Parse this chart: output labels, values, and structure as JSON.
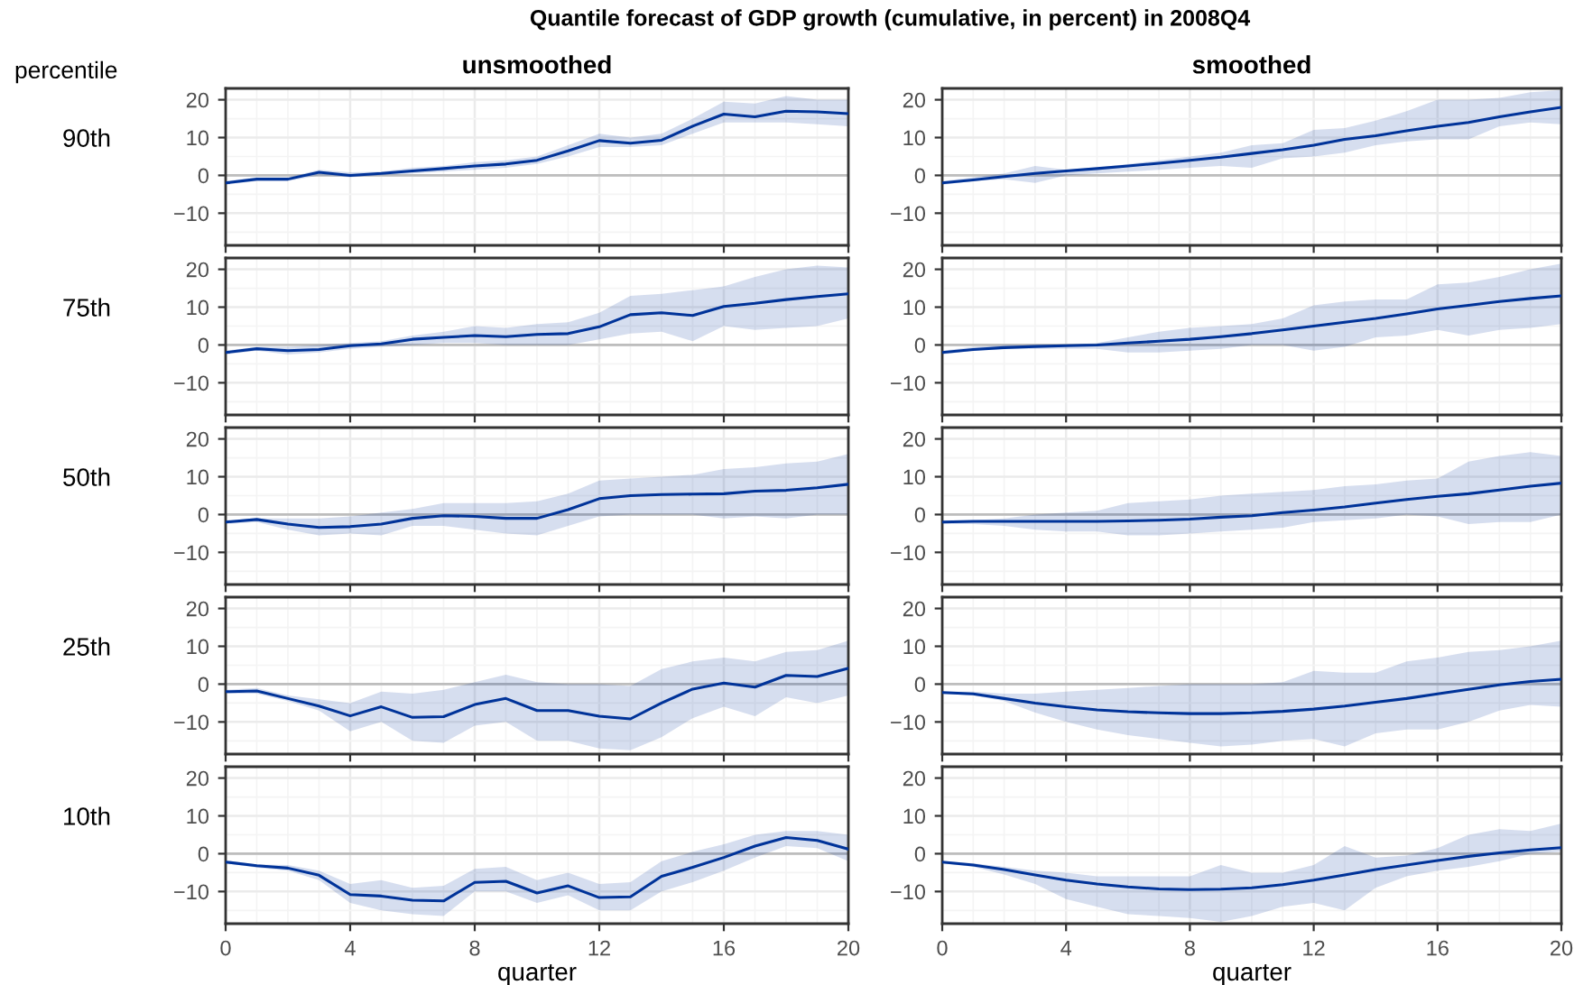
{
  "chart_data": [
    {
      "type": "line",
      "title": "Quantile forecast of GDP growth (cumulative, in percent) in 2008Q4",
      "subtitle": "unsmoothed",
      "ylabel": "90th",
      "annotations": [
        "percentile"
      ],
      "tick_labels": "y",
      "grid": true,
      "xlim": [
        0,
        20
      ],
      "ylim": [
        -18.5,
        23
      ],
      "xticks": [
        0,
        {
          "value": 1,
          "label": null
        },
        {
          "value": 2,
          "label": null
        },
        {
          "value": 3,
          "label": null
        },
        4,
        {
          "value": 5,
          "label": null
        },
        {
          "value": 6,
          "label": null
        },
        {
          "value": 7,
          "label": null
        },
        8,
        {
          "value": 9,
          "label": null
        },
        {
          "value": 10,
          "label": null
        },
        {
          "value": 11,
          "label": null
        },
        12,
        {
          "value": 13,
          "label": null
        },
        {
          "value": 14,
          "label": null
        },
        {
          "value": 15,
          "label": null
        },
        16,
        {
          "value": 17,
          "label": null
        },
        {
          "value": 18,
          "label": null
        },
        {
          "value": 19,
          "label": null
        },
        20
      ],
      "yticks": [
        {
          "value": -15,
          "label": null
        },
        {
          "value": -10,
          "label": "−10"
        },
        {
          "value": -5,
          "label": null
        },
        0,
        {
          "value": 5,
          "label": null
        },
        10,
        {
          "value": 15,
          "label": null
        },
        20
      ],
      "ref_lines": [
        {
          "axis": "y",
          "value": 0,
          "color": "#bdbdbd"
        }
      ],
      "x": [
        0,
        1,
        2,
        3,
        4,
        5,
        6,
        7,
        8,
        9,
        10,
        11,
        12,
        13,
        14,
        15,
        16,
        17,
        18,
        19,
        20
      ],
      "series": [
        {
          "color": "#003399",
          "values": [
            -2,
            -1,
            -1,
            0.8,
            0,
            0.5,
            1.2,
            1.8,
            2.5,
            3,
            4,
            6.5,
            9.2,
            8.5,
            9.3,
            13,
            16.2,
            15.5,
            17,
            16.8,
            16.3
          ],
          "lower": [
            -2.5,
            -1.5,
            -1.5,
            0,
            -0.5,
            0,
            0.5,
            1,
            1.5,
            2,
            3,
            5,
            7.5,
            7.5,
            8,
            11,
            14,
            14,
            14,
            13.5,
            13
          ],
          "upper": [
            -1.5,
            -0.5,
            -0.5,
            1.5,
            0.8,
            1,
            2,
            2.5,
            3.5,
            4,
            5,
            8,
            11,
            10,
            11,
            15,
            19.5,
            19,
            21,
            20,
            20
          ]
        }
      ]
    },
    {
      "type": "line",
      "subtitle": "smoothed",
      "tick_labels": "y",
      "grid": true,
      "xlim": [
        0,
        20
      ],
      "ylim": [
        -18.5,
        23
      ],
      "xticks": [
        0,
        {
          "value": 1,
          "label": null
        },
        {
          "value": 2,
          "label": null
        },
        {
          "value": 3,
          "label": null
        },
        4,
        {
          "value": 5,
          "label": null
        },
        {
          "value": 6,
          "label": null
        },
        {
          "value": 7,
          "label": null
        },
        8,
        {
          "value": 9,
          "label": null
        },
        {
          "value": 10,
          "label": null
        },
        {
          "value": 11,
          "label": null
        },
        12,
        {
          "value": 13,
          "label": null
        },
        {
          "value": 14,
          "label": null
        },
        {
          "value": 15,
          "label": null
        },
        16,
        {
          "value": 17,
          "label": null
        },
        {
          "value": 18,
          "label": null
        },
        {
          "value": 19,
          "label": null
        },
        20
      ],
      "yticks": [
        {
          "value": -15,
          "label": null
        },
        {
          "value": -10,
          "label": "−10"
        },
        {
          "value": -5,
          "label": null
        },
        0,
        {
          "value": 5,
          "label": null
        },
        10,
        {
          "value": 15,
          "label": null
        },
        20
      ],
      "ref_lines": [
        {
          "axis": "y",
          "value": 0,
          "color": "#bdbdbd"
        }
      ],
      "x": [
        0,
        1,
        2,
        3,
        4,
        5,
        6,
        7,
        8,
        9,
        10,
        11,
        12,
        13,
        14,
        15,
        16,
        17,
        18,
        19,
        20
      ],
      "series": [
        {
          "color": "#003399",
          "values": [
            -2,
            -1.2,
            -0.3,
            0.5,
            1.2,
            1.8,
            2.5,
            3.2,
            4,
            4.8,
            5.8,
            6.8,
            8,
            9.5,
            10.5,
            11.8,
            13,
            14,
            15.5,
            16.8,
            18
          ],
          "lower": [
            -2.5,
            -1.5,
            -1,
            -2,
            0,
            0.5,
            1,
            1.5,
            2,
            2.5,
            2,
            4.5,
            5,
            6,
            8,
            9,
            9.5,
            9.5,
            13,
            14,
            13.5
          ],
          "upper": [
            -1.5,
            -0.5,
            0.5,
            2.5,
            1.5,
            2,
            3,
            4,
            5,
            6,
            8,
            8.5,
            12,
            12.5,
            14.5,
            17,
            20,
            20,
            20.5,
            22,
            22.5
          ]
        }
      ]
    },
    {
      "type": "line",
      "ylabel": "75th",
      "tick_labels": "y",
      "grid": true,
      "xlim": [
        0,
        20
      ],
      "ylim": [
        -18.5,
        23
      ],
      "xticks": [
        0,
        {
          "value": 1,
          "label": null
        },
        {
          "value": 2,
          "label": null
        },
        {
          "value": 3,
          "label": null
        },
        4,
        {
          "value": 5,
          "label": null
        },
        {
          "value": 6,
          "label": null
        },
        {
          "value": 7,
          "label": null
        },
        8,
        {
          "value": 9,
          "label": null
        },
        {
          "value": 10,
          "label": null
        },
        {
          "value": 11,
          "label": null
        },
        12,
        {
          "value": 13,
          "label": null
        },
        {
          "value": 14,
          "label": null
        },
        {
          "value": 15,
          "label": null
        },
        16,
        {
          "value": 17,
          "label": null
        },
        {
          "value": 18,
          "label": null
        },
        {
          "value": 19,
          "label": null
        },
        20
      ],
      "yticks": [
        {
          "value": -15,
          "label": null
        },
        {
          "value": -10,
          "label": "−10"
        },
        {
          "value": -5,
          "label": null
        },
        0,
        {
          "value": 5,
          "label": null
        },
        10,
        {
          "value": 15,
          "label": null
        },
        20
      ],
      "ref_lines": [
        {
          "axis": "y",
          "value": 0,
          "color": "#bdbdbd"
        }
      ],
      "x": [
        0,
        1,
        2,
        3,
        4,
        5,
        6,
        7,
        8,
        9,
        10,
        11,
        12,
        13,
        14,
        15,
        16,
        17,
        18,
        19,
        20
      ],
      "series": [
        {
          "color": "#003399",
          "values": [
            -2,
            -1,
            -1.5,
            -1.2,
            -0.2,
            0.3,
            1.5,
            2,
            2.5,
            2.2,
            2.8,
            3,
            4.8,
            8,
            8.5,
            7.8,
            10.2,
            11,
            12,
            12.8,
            13.5
          ],
          "lower": [
            -2.5,
            -1.5,
            -2.5,
            -2,
            -1,
            -0.5,
            0,
            0.5,
            0.5,
            0,
            0,
            0,
            1.5,
            3,
            3.5,
            1,
            5,
            4,
            4.5,
            5,
            7
          ],
          "upper": [
            -1.5,
            -0.5,
            -0.5,
            0,
            0.5,
            1,
            2.5,
            3.5,
            5,
            4.5,
            5.5,
            6,
            8.5,
            13,
            13.5,
            14.5,
            15.5,
            18,
            20,
            21,
            20.5
          ]
        }
      ]
    },
    {
      "type": "line",
      "tick_labels": "y",
      "grid": true,
      "xlim": [
        0,
        20
      ],
      "ylim": [
        -18.5,
        23
      ],
      "xticks": [
        0,
        {
          "value": 1,
          "label": null
        },
        {
          "value": 2,
          "label": null
        },
        {
          "value": 3,
          "label": null
        },
        4,
        {
          "value": 5,
          "label": null
        },
        {
          "value": 6,
          "label": null
        },
        {
          "value": 7,
          "label": null
        },
        8,
        {
          "value": 9,
          "label": null
        },
        {
          "value": 10,
          "label": null
        },
        {
          "value": 11,
          "label": null
        },
        12,
        {
          "value": 13,
          "label": null
        },
        {
          "value": 14,
          "label": null
        },
        {
          "value": 15,
          "label": null
        },
        16,
        {
          "value": 17,
          "label": null
        },
        {
          "value": 18,
          "label": null
        },
        {
          "value": 19,
          "label": null
        },
        20
      ],
      "yticks": [
        {
          "value": -15,
          "label": null
        },
        {
          "value": -10,
          "label": "−10"
        },
        {
          "value": -5,
          "label": null
        },
        0,
        {
          "value": 5,
          "label": null
        },
        10,
        {
          "value": 15,
          "label": null
        },
        20
      ],
      "ref_lines": [
        {
          "axis": "y",
          "value": 0,
          "color": "#bdbdbd"
        }
      ],
      "x": [
        0,
        1,
        2,
        3,
        4,
        5,
        6,
        7,
        8,
        9,
        10,
        11,
        12,
        13,
        14,
        15,
        16,
        17,
        18,
        19,
        20
      ],
      "series": [
        {
          "color": "#003399",
          "values": [
            -2,
            -1.2,
            -0.7,
            -0.4,
            -0.2,
            0,
            0.5,
            1,
            1.5,
            2.2,
            3,
            4,
            5,
            6,
            7,
            8.2,
            9.5,
            10.5,
            11.5,
            12.3,
            13
          ],
          "lower": [
            -2.5,
            -1.5,
            -1,
            -1,
            -1,
            -1,
            -2,
            -2,
            -1.5,
            -1,
            0,
            0,
            -1.5,
            -0.5,
            2,
            2.5,
            4,
            2.5,
            4,
            4.5,
            5.5
          ],
          "upper": [
            -1.5,
            -0.5,
            0,
            0,
            0,
            0.5,
            2,
            3.5,
            4.5,
            5,
            5.5,
            7,
            10.5,
            11.5,
            12,
            12,
            16,
            16.5,
            18,
            20,
            21.5
          ]
        }
      ]
    },
    {
      "type": "line",
      "ylabel": "50th",
      "tick_labels": "y",
      "grid": true,
      "xlim": [
        0,
        20
      ],
      "ylim": [
        -18.5,
        23
      ],
      "xticks": [
        0,
        {
          "value": 1,
          "label": null
        },
        {
          "value": 2,
          "label": null
        },
        {
          "value": 3,
          "label": null
        },
        4,
        {
          "value": 5,
          "label": null
        },
        {
          "value": 6,
          "label": null
        },
        {
          "value": 7,
          "label": null
        },
        8,
        {
          "value": 9,
          "label": null
        },
        {
          "value": 10,
          "label": null
        },
        {
          "value": 11,
          "label": null
        },
        12,
        {
          "value": 13,
          "label": null
        },
        {
          "value": 14,
          "label": null
        },
        {
          "value": 15,
          "label": null
        },
        16,
        {
          "value": 17,
          "label": null
        },
        {
          "value": 18,
          "label": null
        },
        {
          "value": 19,
          "label": null
        },
        20
      ],
      "yticks": [
        {
          "value": -15,
          "label": null
        },
        {
          "value": -10,
          "label": "−10"
        },
        {
          "value": -5,
          "label": null
        },
        0,
        {
          "value": 5,
          "label": null
        },
        10,
        {
          "value": 15,
          "label": null
        },
        20
      ],
      "ref_lines": [
        {
          "axis": "y",
          "value": 0,
          "color": "#bdbdbd"
        }
      ],
      "x": [
        0,
        1,
        2,
        3,
        4,
        5,
        6,
        7,
        8,
        9,
        10,
        11,
        12,
        13,
        14,
        15,
        16,
        17,
        18,
        19,
        20
      ],
      "series": [
        {
          "color": "#003399",
          "values": [
            -2,
            -1.3,
            -2.5,
            -3.4,
            -3.2,
            -2.5,
            -1,
            -0.3,
            -0.5,
            -1,
            -1,
            1.3,
            4.2,
            5,
            5.3,
            5.4,
            5.5,
            6.2,
            6.4,
            7.1,
            8
          ],
          "lower": [
            -2.5,
            -2,
            -4,
            -5.5,
            -5,
            -5.5,
            -3,
            -3,
            -4,
            -5,
            -5.5,
            -3,
            -0.5,
            0,
            0,
            0,
            -1,
            -0.5,
            -1,
            0,
            0
          ],
          "upper": [
            -1.5,
            -1,
            -1,
            -1,
            -0.5,
            0.5,
            1.5,
            3,
            3,
            3,
            3.5,
            5.5,
            9,
            9.5,
            10,
            10.5,
            12,
            12.5,
            13.5,
            14,
            16
          ]
        }
      ]
    },
    {
      "type": "line",
      "tick_labels": "y",
      "grid": true,
      "xlim": [
        0,
        20
      ],
      "ylim": [
        -18.5,
        23
      ],
      "xticks": [
        0,
        {
          "value": 1,
          "label": null
        },
        {
          "value": 2,
          "label": null
        },
        {
          "value": 3,
          "label": null
        },
        4,
        {
          "value": 5,
          "label": null
        },
        {
          "value": 6,
          "label": null
        },
        {
          "value": 7,
          "label": null
        },
        8,
        {
          "value": 9,
          "label": null
        },
        {
          "value": 10,
          "label": null
        },
        {
          "value": 11,
          "label": null
        },
        12,
        {
          "value": 13,
          "label": null
        },
        {
          "value": 14,
          "label": null
        },
        {
          "value": 15,
          "label": null
        },
        16,
        {
          "value": 17,
          "label": null
        },
        {
          "value": 18,
          "label": null
        },
        {
          "value": 19,
          "label": null
        },
        20
      ],
      "yticks": [
        {
          "value": -15,
          "label": null
        },
        {
          "value": -10,
          "label": "−10"
        },
        {
          "value": -5,
          "label": null
        },
        0,
        {
          "value": 5,
          "label": null
        },
        10,
        {
          "value": 15,
          "label": null
        },
        20
      ],
      "ref_lines": [
        {
          "axis": "y",
          "value": 0,
          "color": "#bdbdbd"
        }
      ],
      "x": [
        0,
        1,
        2,
        3,
        4,
        5,
        6,
        7,
        8,
        9,
        10,
        11,
        12,
        13,
        14,
        15,
        16,
        17,
        18,
        19,
        20
      ],
      "series": [
        {
          "color": "#003399",
          "values": [
            -2,
            -1.8,
            -1.8,
            -1.8,
            -1.8,
            -1.8,
            -1.7,
            -1.5,
            -1.2,
            -0.7,
            -0.3,
            0.5,
            1.2,
            2,
            3,
            4,
            4.8,
            5.5,
            6.5,
            7.5,
            8.3
          ],
          "lower": [
            -2.5,
            -2.5,
            -3,
            -4,
            -4.5,
            -4.5,
            -5.5,
            -5.5,
            -5,
            -4.5,
            -4,
            -3.5,
            -2,
            -1.5,
            -1,
            0,
            -0.5,
            -2.5,
            -2,
            -2,
            0
          ],
          "upper": [
            -1.5,
            -1.5,
            -1,
            0,
            0.5,
            1,
            3,
            3.5,
            4,
            5,
            5.5,
            6,
            6.5,
            7.5,
            8,
            9,
            9.5,
            14,
            15.5,
            16.5,
            15.5
          ]
        }
      ]
    },
    {
      "type": "line",
      "ylabel": "25th",
      "tick_labels": "y",
      "grid": true,
      "xlim": [
        0,
        20
      ],
      "ylim": [
        -18.5,
        23
      ],
      "xticks": [
        0,
        {
          "value": 1,
          "label": null
        },
        {
          "value": 2,
          "label": null
        },
        {
          "value": 3,
          "label": null
        },
        4,
        {
          "value": 5,
          "label": null
        },
        {
          "value": 6,
          "label": null
        },
        {
          "value": 7,
          "label": null
        },
        8,
        {
          "value": 9,
          "label": null
        },
        {
          "value": 10,
          "label": null
        },
        {
          "value": 11,
          "label": null
        },
        12,
        {
          "value": 13,
          "label": null
        },
        {
          "value": 14,
          "label": null
        },
        {
          "value": 15,
          "label": null
        },
        16,
        {
          "value": 17,
          "label": null
        },
        {
          "value": 18,
          "label": null
        },
        {
          "value": 19,
          "label": null
        },
        20
      ],
      "yticks": [
        {
          "value": -15,
          "label": null
        },
        {
          "value": -10,
          "label": "−10"
        },
        {
          "value": -5,
          "label": null
        },
        0,
        {
          "value": 5,
          "label": null
        },
        10,
        {
          "value": 15,
          "label": null
        },
        20
      ],
      "ref_lines": [
        {
          "axis": "y",
          "value": 0,
          "color": "#bdbdbd"
        }
      ],
      "x": [
        0,
        1,
        2,
        3,
        4,
        5,
        6,
        7,
        8,
        9,
        10,
        11,
        12,
        13,
        14,
        15,
        16,
        17,
        18,
        19,
        20
      ],
      "series": [
        {
          "color": "#003399",
          "values": [
            -2,
            -1.8,
            -3.8,
            -5.8,
            -8.4,
            -6,
            -8.8,
            -8.6,
            -5.4,
            -3.8,
            -7,
            -7,
            -8.5,
            -9.2,
            -5,
            -1.3,
            0.3,
            -0.8,
            2.3,
            2,
            4.2
          ],
          "lower": [
            -2.5,
            -2.5,
            -4.5,
            -7,
            -12.5,
            -10,
            -15,
            -15.5,
            -11,
            -10,
            -15,
            -15,
            -17,
            -17.5,
            -14,
            -9,
            -6,
            -8.5,
            -3.5,
            -5,
            -3
          ],
          "upper": [
            -1.5,
            -1,
            -3,
            -4,
            -5,
            -2,
            -2.5,
            -1.5,
            0.5,
            2.5,
            0.5,
            0,
            0,
            -0.5,
            4,
            6,
            7,
            6,
            8.5,
            9,
            11.5
          ]
        }
      ]
    },
    {
      "type": "line",
      "tick_labels": "y",
      "grid": true,
      "xlim": [
        0,
        20
      ],
      "ylim": [
        -18.5,
        23
      ],
      "xticks": [
        0,
        {
          "value": 1,
          "label": null
        },
        {
          "value": 2,
          "label": null
        },
        {
          "value": 3,
          "label": null
        },
        4,
        {
          "value": 5,
          "label": null
        },
        {
          "value": 6,
          "label": null
        },
        {
          "value": 7,
          "label": null
        },
        8,
        {
          "value": 9,
          "label": null
        },
        {
          "value": 10,
          "label": null
        },
        {
          "value": 11,
          "label": null
        },
        12,
        {
          "value": 13,
          "label": null
        },
        {
          "value": 14,
          "label": null
        },
        {
          "value": 15,
          "label": null
        },
        16,
        {
          "value": 17,
          "label": null
        },
        {
          "value": 18,
          "label": null
        },
        {
          "value": 19,
          "label": null
        },
        20
      ],
      "yticks": [
        {
          "value": -15,
          "label": null
        },
        {
          "value": -10,
          "label": "−10"
        },
        {
          "value": -5,
          "label": null
        },
        0,
        {
          "value": 5,
          "label": null
        },
        10,
        {
          "value": 15,
          "label": null
        },
        20
      ],
      "ref_lines": [
        {
          "axis": "y",
          "value": 0,
          "color": "#bdbdbd"
        }
      ],
      "x": [
        0,
        1,
        2,
        3,
        4,
        5,
        6,
        7,
        8,
        9,
        10,
        11,
        12,
        13,
        14,
        15,
        16,
        17,
        18,
        19,
        20
      ],
      "series": [
        {
          "color": "#003399",
          "values": [
            -2.2,
            -2.6,
            -3.8,
            -5,
            -6,
            -6.8,
            -7.3,
            -7.6,
            -7.8,
            -7.8,
            -7.6,
            -7.2,
            -6.6,
            -5.8,
            -4.8,
            -3.8,
            -2.6,
            -1.4,
            -0.2,
            0.7,
            1.3
          ],
          "lower": [
            -2.5,
            -3,
            -4.5,
            -7.5,
            -10,
            -12,
            -13.5,
            -14.5,
            -15.5,
            -16.5,
            -16,
            -15,
            -14.5,
            -16.5,
            -13,
            -12,
            -12,
            -10,
            -7,
            -5.5,
            -6
          ],
          "upper": [
            -2,
            -2,
            -2.5,
            -2.5,
            -2,
            -1.5,
            -1,
            -0.5,
            0,
            0,
            0,
            0.5,
            3.5,
            3,
            3,
            6,
            7,
            8.5,
            9,
            10,
            11.5
          ]
        }
      ]
    },
    {
      "type": "line",
      "ylabel": "10th",
      "xlabel": "quarter",
      "grid": true,
      "xlim": [
        0,
        20
      ],
      "ylim": [
        -18.5,
        23
      ],
      "xticks": [
        0,
        {
          "value": 1,
          "label": null
        },
        {
          "value": 2,
          "label": null
        },
        {
          "value": 3,
          "label": null
        },
        4,
        {
          "value": 5,
          "label": null
        },
        {
          "value": 6,
          "label": null
        },
        {
          "value": 7,
          "label": null
        },
        8,
        {
          "value": 9,
          "label": null
        },
        {
          "value": 10,
          "label": null
        },
        {
          "value": 11,
          "label": null
        },
        12,
        {
          "value": 13,
          "label": null
        },
        {
          "value": 14,
          "label": null
        },
        {
          "value": 15,
          "label": null
        },
        16,
        {
          "value": 17,
          "label": null
        },
        {
          "value": 18,
          "label": null
        },
        {
          "value": 19,
          "label": null
        },
        20
      ],
      "yticks": [
        {
          "value": -15,
          "label": null
        },
        {
          "value": -10,
          "label": "−10"
        },
        {
          "value": -5,
          "label": null
        },
        0,
        {
          "value": 5,
          "label": null
        },
        10,
        {
          "value": 15,
          "label": null
        },
        20
      ],
      "ref_lines": [
        {
          "axis": "y",
          "value": 0,
          "color": "#bdbdbd"
        }
      ],
      "x": [
        0,
        1,
        2,
        3,
        4,
        5,
        6,
        7,
        8,
        9,
        10,
        11,
        12,
        13,
        14,
        15,
        16,
        17,
        18,
        19,
        20
      ],
      "series": [
        {
          "color": "#003399",
          "values": [
            -2.2,
            -3.2,
            -3.8,
            -5.7,
            -10.8,
            -11.2,
            -12.3,
            -12.5,
            -7.6,
            -7.3,
            -10.4,
            -8.5,
            -11.6,
            -11.4,
            -6,
            -3.6,
            -1,
            2,
            4.3,
            3.5,
            1.2
          ],
          "lower": [
            -2.5,
            -3.7,
            -4.5,
            -7,
            -13,
            -15,
            -16,
            -16.5,
            -10,
            -10,
            -13,
            -11,
            -15,
            -15,
            -10,
            -7.5,
            -4.5,
            -1,
            2,
            1.5,
            -2
          ],
          "upper": [
            -1.8,
            -2.8,
            -3,
            -4.5,
            -8,
            -7,
            -9,
            -8.5,
            -4,
            -3.5,
            -7,
            -5,
            -8,
            -7.5,
            -2,
            0.5,
            2.5,
            5,
            6,
            6,
            5
          ]
        }
      ]
    },
    {
      "type": "line",
      "xlabel": "quarter",
      "grid": true,
      "xlim": [
        0,
        20
      ],
      "ylim": [
        -18.5,
        23
      ],
      "xticks": [
        0,
        {
          "value": 1,
          "label": null
        },
        {
          "value": 2,
          "label": null
        },
        {
          "value": 3,
          "label": null
        },
        4,
        {
          "value": 5,
          "label": null
        },
        {
          "value": 6,
          "label": null
        },
        {
          "value": 7,
          "label": null
        },
        8,
        {
          "value": 9,
          "label": null
        },
        {
          "value": 10,
          "label": null
        },
        {
          "value": 11,
          "label": null
        },
        12,
        {
          "value": 13,
          "label": null
        },
        {
          "value": 14,
          "label": null
        },
        {
          "value": 15,
          "label": null
        },
        16,
        {
          "value": 17,
          "label": null
        },
        {
          "value": 18,
          "label": null
        },
        {
          "value": 19,
          "label": null
        },
        20
      ],
      "yticks": [
        {
          "value": -15,
          "label": null
        },
        {
          "value": -10,
          "label": "−10"
        },
        {
          "value": -5,
          "label": null
        },
        0,
        {
          "value": 5,
          "label": null
        },
        10,
        {
          "value": 15,
          "label": null
        },
        20
      ],
      "ref_lines": [
        {
          "axis": "y",
          "value": 0,
          "color": "#bdbdbd"
        }
      ],
      "x": [
        0,
        1,
        2,
        3,
        4,
        5,
        6,
        7,
        8,
        9,
        10,
        11,
        12,
        13,
        14,
        15,
        16,
        17,
        18,
        19,
        20
      ],
      "series": [
        {
          "color": "#003399",
          "values": [
            -2.2,
            -3,
            -4.2,
            -5.6,
            -7,
            -8,
            -8.8,
            -9.3,
            -9.5,
            -9.4,
            -9,
            -8.2,
            -7,
            -5.6,
            -4.2,
            -3,
            -1.8,
            -0.7,
            0.2,
            1,
            1.6
          ],
          "lower": [
            -2.5,
            -3.5,
            -5.5,
            -8,
            -12,
            -14,
            -16,
            -16.5,
            -17,
            -18,
            -16.5,
            -14,
            -13,
            -15,
            -9,
            -6,
            -4.5,
            -3.5,
            -2,
            0,
            0.5
          ],
          "upper": [
            -2,
            -2.5,
            -3.5,
            -4.5,
            -5,
            -6,
            -6,
            -6,
            -6,
            -3,
            -5,
            -5,
            -3,
            2,
            -1,
            -0.5,
            1.5,
            5,
            6.5,
            6,
            8
          ]
        }
      ]
    }
  ]
}
